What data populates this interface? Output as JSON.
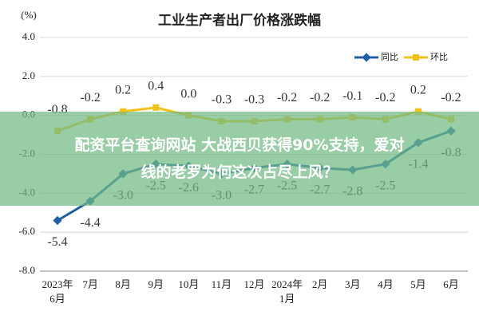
{
  "chart_data": {
    "type": "line",
    "title": "工业生产者出厂价格涨跌幅",
    "y_label": "(%)",
    "categories": [
      "2023年6月",
      "7月",
      "8月",
      "9月",
      "10月",
      "11月",
      "12月",
      "2024年1月",
      "2月",
      "3月",
      "4月",
      "5月",
      "6月"
    ],
    "series": [
      {
        "name": "同比",
        "color": "#1f5fa8",
        "values": [
          -5.4,
          -4.4,
          -3.0,
          -2.5,
          -2.6,
          -3.0,
          -2.7,
          -2.5,
          -2.7,
          -2.8,
          -2.5,
          -1.4,
          -0.8
        ],
        "value_labels": [
          "-5.4",
          "-4.4",
          "-3.0",
          "-2.5",
          "-2.6",
          "-3.0",
          "-2.7",
          "-2.5",
          "-2.7",
          "-2.8",
          "-2.5",
          "-1.4",
          "-0.8"
        ]
      },
      {
        "name": "环比",
        "color": "#f2c21b",
        "values": [
          -0.8,
          -0.2,
          0.2,
          0.4,
          0.0,
          -0.3,
          -0.3,
          -0.2,
          -0.2,
          -0.1,
          -0.2,
          0.2,
          -0.2
        ],
        "value_labels": [
          "-0.8",
          "-0.2",
          "0.2",
          "0.4",
          "0.0",
          "-0.3",
          "-0.3",
          "-0.2",
          "-0.2",
          "-0.1",
          "-0.2",
          "0.2",
          "-0.2"
        ]
      }
    ],
    "ylim": [
      -8,
      4
    ],
    "yticks": [
      {
        "value": -8,
        "label": "-8.0"
      },
      {
        "value": -6,
        "label": "-6.0"
      },
      {
        "value": -4,
        "label": "-4.0"
      },
      {
        "value": -2,
        "label": "-2.0"
      },
      {
        "value": 0,
        "label": "0.0"
      },
      {
        "value": 2,
        "label": "2.0"
      },
      {
        "value": 4,
        "label": "4.0"
      }
    ],
    "grid": true,
    "legend": "top-right"
  },
  "overlay": {
    "lines": [
      "配资平台查询网站 大战西贝获得90%支持，爱对",
      "线的老罗为何这次占尽上风？"
    ]
  }
}
